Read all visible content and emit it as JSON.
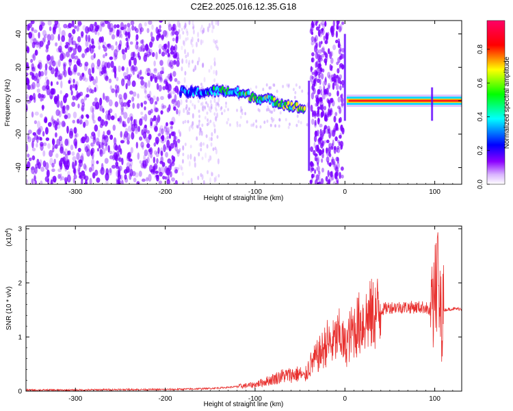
{
  "title": "C2E2.2025.016.12.35.G18",
  "chart_data": [
    {
      "type": "heatmap",
      "xlabel": "Height of straight line (km)",
      "ylabel": "Frequency (Hz)",
      "xlim": [
        -355,
        130
      ],
      "ylim": [
        -50,
        48
      ],
      "x_ticks": [
        -300,
        -200,
        -100,
        0,
        100
      ],
      "y_ticks": [
        -40,
        -20,
        0,
        20,
        40
      ],
      "colorbar": {
        "label": "Normalized spectral amplitude",
        "range": [
          0,
          0.97
        ],
        "ticks": [
          0,
          0.2,
          0.4,
          0.6,
          0.8
        ],
        "colors": [
          "#ffffff",
          "#8b00ff",
          "#0000ff",
          "#00ffff",
          "#00ff00",
          "#ffff00",
          "#ff0000",
          "#ff0066"
        ]
      },
      "noise_color": "#7a00ff",
      "signal_track": [
        {
          "x": -183,
          "f": 5,
          "amp": 0.3
        },
        {
          "x": -160,
          "f": 5,
          "amp": 0.35
        },
        {
          "x": -140,
          "f": 6,
          "amp": 0.45
        },
        {
          "x": -120,
          "f": 5,
          "amp": 0.5
        },
        {
          "x": -100,
          "f": 2,
          "amp": 0.55
        },
        {
          "x": -80,
          "f": 0,
          "amp": 0.5
        },
        {
          "x": -60,
          "f": -3,
          "amp": 0.6
        },
        {
          "x": -45,
          "f": -5,
          "amp": 0.65
        },
        {
          "x": 0,
          "f": 0,
          "amp": 0.85
        },
        {
          "x": 50,
          "f": 0,
          "amp": 0.85
        },
        {
          "x": 100,
          "f": 0,
          "amp": 0.8
        },
        {
          "x": 130,
          "f": 0,
          "amp": 0.8
        }
      ]
    },
    {
      "type": "line",
      "xlabel": "Height of straight line (km)",
      "ylabel": "SNR (10 * v/v)",
      "y_multiplier": "(x10",
      "y_multiplier_exp": "4",
      "y_multiplier_close": ")",
      "xlim": [
        -355,
        130
      ],
      "ylim": [
        0,
        3.05
      ],
      "x_ticks": [
        -300,
        -200,
        -100,
        0,
        100
      ],
      "y_ticks": [
        0,
        1,
        2,
        3
      ],
      "color": "#e8302e",
      "series": [
        {
          "x": [
            -355,
            -300,
            -250,
            -200,
            -170,
            -150,
            -130,
            -110,
            -100,
            -90,
            -80,
            -70,
            -60,
            -50,
            -45,
            -40,
            -35,
            -30,
            -25,
            -20,
            -15,
            -10,
            -5,
            0,
            5,
            10,
            20,
            30,
            40,
            50,
            60,
            70,
            80,
            90,
            95,
            100,
            103,
            106,
            110,
            120,
            130
          ],
          "y": [
            0.02,
            0.02,
            0.03,
            0.03,
            0.04,
            0.05,
            0.07,
            0.1,
            0.12,
            0.17,
            0.22,
            0.28,
            0.3,
            0.32,
            0.25,
            0.45,
            0.55,
            0.65,
            0.75,
            0.9,
            0.85,
            0.95,
            1.05,
            0.8,
            1.0,
            1.15,
            1.3,
            1.4,
            1.5,
            1.55,
            1.55,
            1.55,
            1.55,
            1.55,
            1.45,
            1.5,
            1.9,
            1.4,
            1.5,
            1.52,
            1.52
          ]
        }
      ]
    }
  ]
}
